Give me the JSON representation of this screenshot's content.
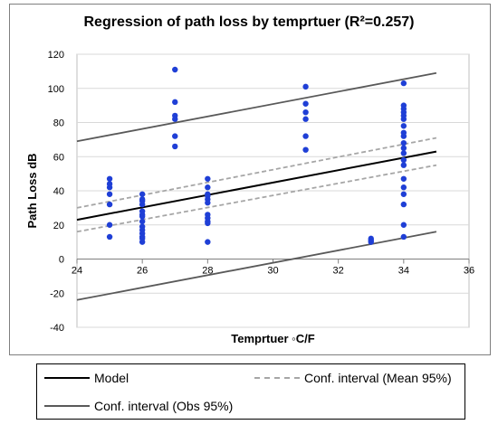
{
  "chart_data": {
    "type": "scatter",
    "title": "Regression of path loss by temprtuer (R²=0.257)",
    "xlabel": "Temprtuer ◦C/F",
    "ylabel": "Path Loss dB",
    "xlim": [
      24,
      36
    ],
    "ylim": [
      -40,
      120
    ],
    "xticks": [
      "24",
      "26",
      "28",
      "30",
      "32",
      "34",
      "36"
    ],
    "yticks": [
      "-40",
      "-20",
      "0",
      "20",
      "40",
      "60",
      "80",
      "100",
      "120"
    ],
    "grid": true,
    "legend_position": "bottom",
    "points": {
      "color": "#1f3fd6",
      "x": [
        25,
        25,
        25,
        25,
        25,
        25,
        25,
        26,
        26,
        26,
        26,
        26,
        26,
        26,
        26,
        26,
        26,
        26,
        26,
        26,
        26,
        27,
        27,
        27,
        27,
        27,
        27,
        28,
        28,
        28,
        28,
        28,
        28,
        28,
        28,
        28,
        28,
        28,
        31,
        31,
        31,
        31,
        31,
        31,
        33,
        33,
        33,
        34,
        34,
        34,
        34,
        34,
        34,
        34,
        34,
        34,
        34,
        34,
        34,
        34,
        34,
        34,
        34,
        34,
        34,
        34,
        34
      ],
      "y": [
        47,
        42,
        38,
        32,
        20,
        13,
        44,
        38,
        35,
        32,
        26,
        25,
        22,
        19,
        17,
        15,
        13,
        12,
        10,
        34,
        28,
        111,
        92,
        84,
        82,
        72,
        66,
        47,
        42,
        38,
        35,
        33,
        26,
        24,
        22,
        21,
        10,
        37,
        101,
        91,
        86,
        82,
        72,
        64,
        12,
        11,
        10,
        103,
        90,
        88,
        86,
        82,
        78,
        74,
        72,
        68,
        65,
        62,
        58,
        55,
        47,
        42,
        38,
        32,
        20,
        13,
        84
      ]
    },
    "series": [
      {
        "name": "Model",
        "color": "#000000",
        "dash": "solid",
        "x": [
          24,
          35
        ],
        "y": [
          23,
          63
        ]
      },
      {
        "name": "Conf. interval (Mean 95%)",
        "color": "#a6a6a6",
        "dash": "dashed",
        "x": [
          24,
          35
        ],
        "y": [
          30,
          71
        ]
      },
      {
        "name": "",
        "color": "#a6a6a6",
        "dash": "dashed",
        "x": [
          24,
          35
        ],
        "y": [
          16,
          55
        ]
      },
      {
        "name": "Conf. interval (Obs 95%)",
        "color": "#595959",
        "dash": "solid",
        "x": [
          24,
          35
        ],
        "y": [
          69,
          109
        ]
      },
      {
        "name": "",
        "color": "#595959",
        "dash": "solid",
        "x": [
          24,
          35
        ],
        "y": [
          -24,
          16
        ]
      }
    ]
  }
}
